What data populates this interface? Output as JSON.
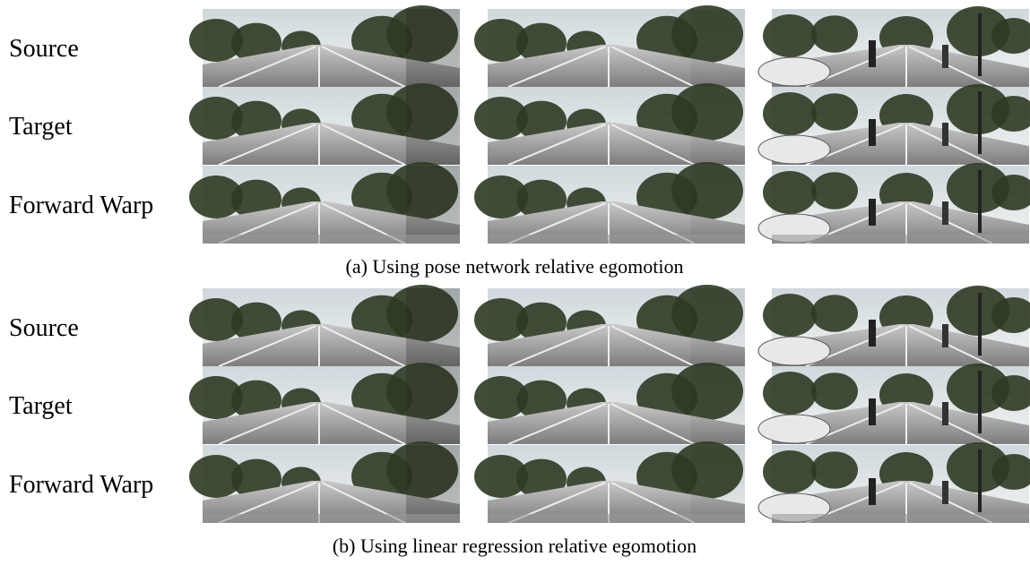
{
  "panels": [
    {
      "rows": [
        "Source",
        "Target",
        "Forward Warp"
      ],
      "caption": "(a) Using pose network relative egomotion"
    },
    {
      "rows": [
        "Source",
        "Target",
        "Forward Warp"
      ],
      "caption": "(b) Using linear regression relative egomotion"
    }
  ]
}
